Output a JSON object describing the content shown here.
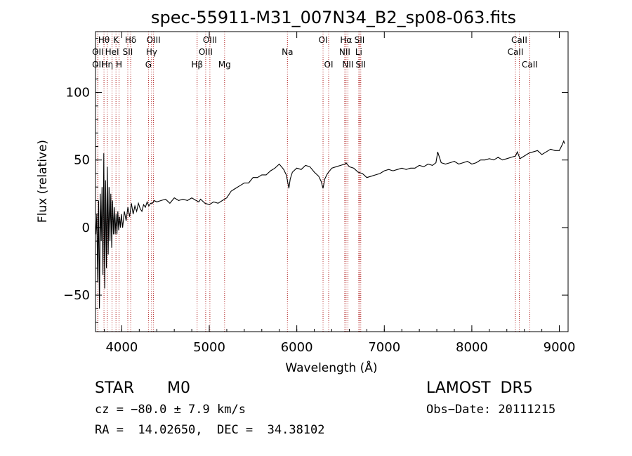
{
  "chart_data": {
    "type": "line",
    "title": "spec-55911-M31_007N34_B2_sp08-063.fits",
    "xlabel": "Wavelength (Å)",
    "ylabel": "Flux (relative)",
    "xlim": [
      3700,
      9100
    ],
    "ylim": [
      -77,
      145
    ],
    "xticks": [
      4000,
      5000,
      6000,
      7000,
      8000,
      9000
    ],
    "yticks": [
      -50,
      0,
      50,
      100
    ],
    "grid": false,
    "series": [
      {
        "x": [
          3705,
          3715,
          3725,
          3735,
          3745,
          3755,
          3765,
          3775,
          3785,
          3795,
          3805,
          3815,
          3825,
          3835,
          3845,
          3855,
          3865,
          3875,
          3885,
          3895,
          3905,
          3915,
          3925,
          3935,
          3945,
          3955,
          3965,
          3975,
          3985,
          3995,
          4010,
          4030,
          4050,
          4070,
          4090,
          4110,
          4130,
          4150,
          4170,
          4190,
          4210,
          4230,
          4250,
          4270,
          4290,
          4310,
          4330,
          4350,
          4370,
          4400,
          4450,
          4500,
          4550,
          4600,
          4650,
          4700,
          4750,
          4800,
          4850,
          4880,
          4900,
          4950,
          5000,
          5050,
          5100,
          5150,
          5200,
          5250,
          5300,
          5350,
          5400,
          5450,
          5500,
          5550,
          5600,
          5650,
          5700,
          5750,
          5800,
          5850,
          5880,
          5895,
          5910,
          5925,
          5950,
          6000,
          6050,
          6100,
          6150,
          6200,
          6250,
          6280,
          6300,
          6320,
          6350,
          6400,
          6450,
          6500,
          6550,
          6563,
          6600,
          6650,
          6700,
          6750,
          6800,
          6850,
          6900,
          6950,
          7000,
          7050,
          7100,
          7150,
          7200,
          7250,
          7300,
          7350,
          7400,
          7450,
          7500,
          7550,
          7590,
          7600,
          7610,
          7650,
          7700,
          7750,
          7800,
          7850,
          7900,
          7950,
          8000,
          8050,
          8100,
          8150,
          8200,
          8250,
          8300,
          8350,
          8400,
          8450,
          8500,
          8520,
          8550,
          8600,
          8650,
          8700,
          8750,
          8800,
          8850,
          8900,
          8950,
          9000,
          9030,
          9050,
          9060
        ],
        "y": [
          -5,
          10,
          -40,
          20,
          -60,
          25,
          -10,
          30,
          -35,
          55,
          -45,
          35,
          -30,
          45,
          -20,
          30,
          -10,
          25,
          -15,
          20,
          -5,
          15,
          -5,
          10,
          -5,
          12,
          -2,
          8,
          0,
          10,
          0,
          12,
          5,
          15,
          8,
          18,
          10,
          16,
          12,
          18,
          14,
          12,
          17,
          15,
          19,
          16,
          18,
          18,
          20,
          19,
          20,
          21,
          18,
          22,
          20,
          21,
          20,
          22,
          20,
          19,
          21,
          18,
          17,
          19,
          18,
          20,
          22,
          27,
          29,
          31,
          33,
          33,
          37,
          37,
          39,
          39,
          42,
          44,
          47,
          43,
          39,
          34,
          29,
          36,
          41,
          44,
          43,
          46,
          45,
          41,
          38,
          34,
          29,
          36,
          40,
          44,
          45,
          46,
          47,
          48,
          45,
          44,
          41,
          40,
          37,
          38,
          39,
          40,
          42,
          43,
          42,
          43,
          44,
          43,
          44,
          44,
          46,
          45,
          47,
          46,
          48,
          52,
          56,
          48,
          47,
          48,
          49,
          47,
          48,
          49,
          47,
          48,
          50,
          50,
          51,
          50,
          52,
          50,
          51,
          52,
          53,
          56,
          51,
          53,
          55,
          56,
          57,
          54,
          56,
          58,
          57,
          57,
          61,
          64,
          62
        ]
      }
    ],
    "lines": [
      {
        "name": "Hθ",
        "x": 3797,
        "row": 1
      },
      {
        "name": "OII",
        "x": 3727,
        "row": 2
      },
      {
        "name": "OII",
        "x": 3727,
        "row": 3
      },
      {
        "name": "Hη",
        "x": 3835,
        "row": 3
      },
      {
        "name": "K",
        "x": 3934,
        "row": 1
      },
      {
        "name": "HeI",
        "x": 3889,
        "row": 2
      },
      {
        "name": "H",
        "x": 3969,
        "row": 3
      },
      {
        "name": "Hδ",
        "x": 4102,
        "row": 1
      },
      {
        "name": "SII",
        "x": 4069,
        "row": 2
      },
      {
        "name": "OIII",
        "x": 4363,
        "row": 1
      },
      {
        "name": "Hγ",
        "x": 4341,
        "row": 2
      },
      {
        "name": "G",
        "x": 4305,
        "row": 3
      },
      {
        "name": "OIII",
        "x": 5007,
        "row": 1
      },
      {
        "name": "OIII",
        "x": 4959,
        "row": 2
      },
      {
        "name": "Hβ",
        "x": 4861,
        "row": 3
      },
      {
        "name": "Mg",
        "x": 5175,
        "row": 3
      },
      {
        "name": "Na",
        "x": 5893,
        "row": 2
      },
      {
        "name": "OI",
        "x": 6300,
        "row": 1
      },
      {
        "name": "OI",
        "x": 6364,
        "row": 3
      },
      {
        "name": "Hα",
        "x": 6563,
        "row": 1
      },
      {
        "name": "NII",
        "x": 6548,
        "row": 2
      },
      {
        "name": "NII",
        "x": 6584,
        "row": 3
      },
      {
        "name": "SII",
        "x": 6717,
        "row": 1
      },
      {
        "name": "Li",
        "x": 6708,
        "row": 2
      },
      {
        "name": "SII",
        "x": 6731,
        "row": 3
      },
      {
        "name": "CaII",
        "x": 8542,
        "row": 1
      },
      {
        "name": "CaII",
        "x": 8498,
        "row": 2
      },
      {
        "name": "CaII",
        "x": 8662,
        "row": 3
      }
    ]
  },
  "info": {
    "object_class": "STAR",
    "subclass": "M0",
    "survey": "LAMOST  DR5",
    "redshift": "cz = −80.0 ± 7.9 km/s",
    "obs_date": "Obs−Date: 20111215",
    "coords": "RA =  14.02650,  DEC =  34.38102"
  },
  "colors": {
    "spectrum": "#000000",
    "line_markers": "#b22222"
  }
}
